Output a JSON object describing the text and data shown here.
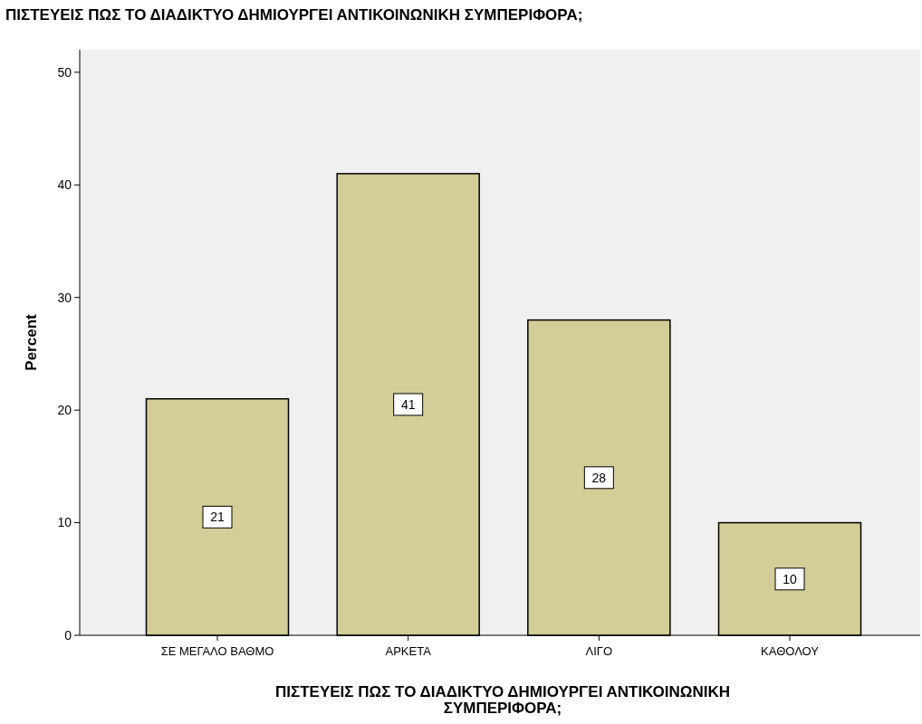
{
  "chart_data": {
    "type": "bar",
    "title": "ΠΙΣΤΕΥΕΙΣ ΠΩΣ ΤΟ ΔΙΑΔΙΚΤΥΟ ΔΗΜΙΟΥΡΓΕΙ ΑΝΤΙΚΟΙΝΩΝΙΚΗ ΣΥΜΠΕΡΙΦΟΡΑ;",
    "xlabel": "ΠΙΣΤΕΥΕΙΣ ΠΩΣ ΤΟ ΔΙΑΔΙΚΤΥΟ ΔΗΜΙΟΥΡΓΕΙ ΑΝΤΙΚΟΙΝΩΝΙΚΗ ΣΥΜΠΕΡΙΦΟΡΑ;",
    "ylabel": "Percent",
    "categories": [
      "ΣΕ ΜΕΓΑΛΟ ΒΑΘΜΟ",
      "ΑΡΚΕΤΑ",
      "ΛΙΓΟ",
      "ΚΑΘΟΛΟΥ"
    ],
    "values": [
      21,
      41,
      28,
      10
    ],
    "color": "#d3ce97",
    "ylim": [
      0,
      52
    ],
    "yticks": [
      0,
      10,
      20,
      30,
      40,
      50
    ],
    "grid": false,
    "data_labels": true
  }
}
